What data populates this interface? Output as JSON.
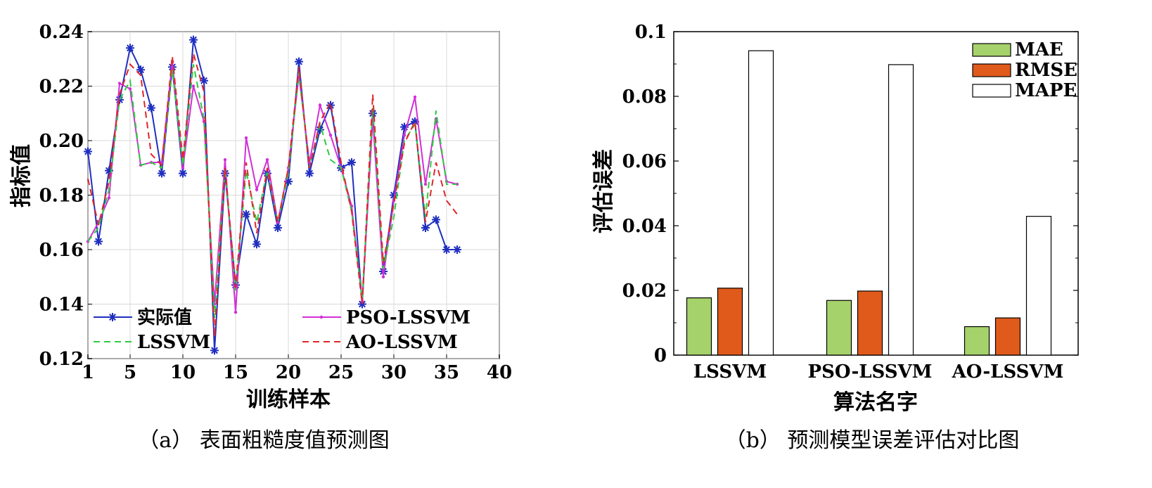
{
  "chart_data": [
    {
      "type": "line",
      "caption": "（a） 表面粗糙度值预测图",
      "xlabel": "训练样本",
      "ylabel": "指标值",
      "xlim": [
        1,
        40
      ],
      "ylim": [
        0.12,
        0.24
      ],
      "xticks": [
        1,
        5,
        10,
        15,
        20,
        25,
        30,
        35,
        40
      ],
      "yticks": [
        0.12,
        0.14,
        0.16,
        0.18,
        0.2,
        0.22,
        0.24
      ],
      "ytick_labels": [
        "0.12",
        "0.14",
        "0.16",
        "0.18",
        "0.20",
        "0.22",
        "0.24"
      ],
      "grid": true,
      "legend_position": "bottom",
      "x": [
        1,
        2,
        3,
        4,
        5,
        6,
        7,
        8,
        9,
        10,
        11,
        12,
        13,
        14,
        15,
        16,
        17,
        18,
        19,
        20,
        21,
        22,
        23,
        24,
        25,
        26,
        27,
        28,
        29,
        30,
        31,
        32,
        33,
        34,
        35,
        36
      ],
      "series": [
        {
          "name": "实际值",
          "color": "#1f2fbf",
          "style": "solid-star",
          "values": [
            0.196,
            0.163,
            0.189,
            0.215,
            0.234,
            0.226,
            0.212,
            0.188,
            0.227,
            0.188,
            0.237,
            0.222,
            0.123,
            0.188,
            0.147,
            0.173,
            0.162,
            0.188,
            0.168,
            0.185,
            0.229,
            0.188,
            0.204,
            0.213,
            0.19,
            0.192,
            0.14,
            0.21,
            0.152,
            0.18,
            0.205,
            0.207,
            0.168,
            0.171,
            0.16,
            0.16
          ]
        },
        {
          "name": "PSO-LSSVM",
          "color": "#d22fd6",
          "style": "solid-dot",
          "values": [
            0.163,
            0.17,
            0.179,
            0.221,
            0.219,
            0.191,
            0.192,
            0.192,
            0.229,
            0.19,
            0.22,
            0.207,
            0.14,
            0.193,
            0.137,
            0.201,
            0.182,
            0.193,
            0.17,
            0.19,
            0.224,
            0.192,
            0.213,
            0.202,
            0.19,
            0.176,
            0.141,
            0.208,
            0.15,
            0.178,
            0.202,
            0.216,
            0.184,
            0.208,
            0.185,
            0.184
          ]
        },
        {
          "name": "LSSVM",
          "color": "#2ecc40",
          "style": "dash",
          "values": [
            0.163,
            0.168,
            0.182,
            0.215,
            0.222,
            0.191,
            0.192,
            0.19,
            0.226,
            0.191,
            0.228,
            0.208,
            0.135,
            0.19,
            0.145,
            0.189,
            0.17,
            0.189,
            0.17,
            0.188,
            0.225,
            0.19,
            0.206,
            0.193,
            0.19,
            0.174,
            0.142,
            0.212,
            0.153,
            0.172,
            0.2,
            0.206,
            0.172,
            0.211,
            0.184,
            0.184
          ]
        },
        {
          "name": "AO-LSSVM",
          "color": "#e0262a",
          "style": "dash",
          "values": [
            0.186,
            0.169,
            0.185,
            0.217,
            0.228,
            0.224,
            0.195,
            0.191,
            0.231,
            0.193,
            0.232,
            0.218,
            0.128,
            0.19,
            0.146,
            0.192,
            0.166,
            0.19,
            0.17,
            0.19,
            0.227,
            0.19,
            0.207,
            0.214,
            0.192,
            0.174,
            0.14,
            0.217,
            0.155,
            0.177,
            0.199,
            0.207,
            0.17,
            0.192,
            0.178,
            0.173
          ]
        }
      ]
    },
    {
      "type": "bar",
      "caption": "（b） 预测模型误差评估对比图",
      "xlabel": "算法名字",
      "ylabel": "评估误差",
      "ylim": [
        0,
        0.1
      ],
      "yticks": [
        0,
        0.02,
        0.04,
        0.06,
        0.08,
        0.1
      ],
      "ytick_labels": [
        "0",
        "0.02",
        "0.04",
        "0.06",
        "0.08",
        "0.1"
      ],
      "legend_position": "top-right",
      "categories": [
        "LSSVM",
        "PSO-LSSVM",
        "AO-LSSVM"
      ],
      "series": [
        {
          "name": "MAE",
          "color": "#a6d26b",
          "values": [
            0.0177,
            0.0169,
            0.0088
          ]
        },
        {
          "name": "RMSE",
          "color": "#e05a1c",
          "values": [
            0.0207,
            0.0198,
            0.0115
          ]
        },
        {
          "name": "MAPE",
          "color": "#ffffff",
          "values": [
            0.0941,
            0.0898,
            0.0429
          ]
        }
      ]
    }
  ]
}
